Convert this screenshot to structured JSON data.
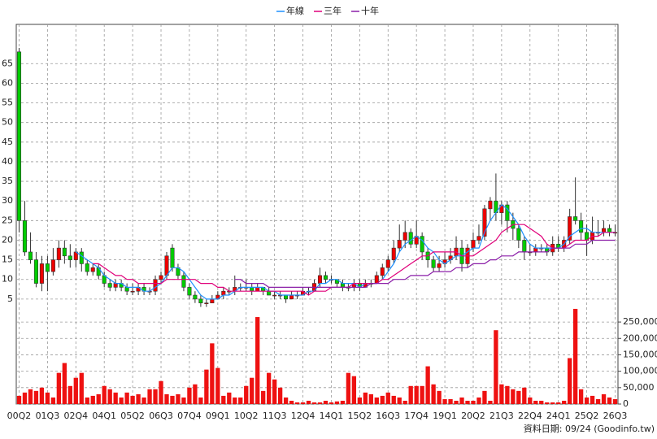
{
  "chart_data": {
    "type": "candlestick",
    "categories": [
      "00Q2",
      null,
      null,
      null,
      null,
      "01Q3",
      null,
      null,
      null,
      null,
      "02Q4",
      null,
      null,
      null,
      null,
      "04Q1",
      null,
      null,
      null,
      null,
      "05Q2",
      null,
      null,
      null,
      null,
      "06Q3",
      null,
      null,
      null,
      null,
      "07Q4",
      null,
      null,
      null,
      null,
      "09Q1",
      null,
      null,
      null,
      null,
      "10Q2",
      null,
      null,
      null,
      null,
      "11Q3",
      null,
      null,
      null,
      null,
      "12Q4",
      null,
      null,
      null,
      null,
      "14Q1",
      null,
      null,
      null,
      null,
      "15Q2",
      null,
      null,
      null,
      null,
      "16Q3",
      null,
      null,
      null,
      null,
      "17Q4",
      null,
      null,
      null,
      null,
      "19Q1",
      null,
      null,
      null,
      null,
      "20Q2",
      null,
      null,
      null,
      null,
      "21Q3",
      null,
      null,
      null,
      null,
      "22Q4",
      null,
      null,
      null,
      null,
      "24Q1",
      null,
      null,
      null,
      null,
      "25Q2",
      null,
      null,
      null,
      null,
      "26Q3"
    ],
    "candles": [
      [
        68,
        69,
        22,
        25
      ],
      [
        25,
        30,
        16,
        17
      ],
      [
        17,
        22,
        14,
        15
      ],
      [
        15,
        17,
        8,
        9
      ],
      [
        9,
        16,
        7,
        14
      ],
      [
        14,
        16,
        7,
        12
      ],
      [
        12,
        18,
        11,
        15
      ],
      [
        15,
        20,
        13,
        18
      ],
      [
        18,
        20,
        14,
        16
      ],
      [
        16,
        19,
        13,
        15
      ],
      [
        15,
        18,
        13,
        17
      ],
      [
        17,
        18,
        12,
        14
      ],
      [
        14,
        15,
        11,
        12
      ],
      [
        12,
        14,
        11,
        13
      ],
      [
        13,
        14,
        10,
        11
      ],
      [
        11,
        12,
        8,
        9
      ],
      [
        9,
        10,
        7,
        8
      ],
      [
        8,
        10,
        7,
        9
      ],
      [
        9,
        10,
        7,
        8
      ],
      [
        8,
        9,
        6,
        7
      ],
      [
        7,
        9,
        6,
        7
      ],
      [
        7,
        9,
        6,
        8
      ],
      [
        8,
        9,
        6,
        7
      ],
      [
        7,
        8,
        6,
        7
      ],
      [
        7,
        11,
        6,
        10
      ],
      [
        10,
        12,
        9,
        11
      ],
      [
        11,
        17,
        10,
        16
      ],
      [
        18,
        19,
        12,
        13
      ],
      [
        13,
        14,
        10,
        11
      ],
      [
        11,
        12,
        7,
        8
      ],
      [
        8,
        9,
        5,
        6
      ],
      [
        6,
        7,
        4,
        5
      ],
      [
        5,
        6,
        3,
        4
      ],
      [
        4,
        5,
        3,
        4
      ],
      [
        4,
        6,
        4,
        5
      ],
      [
        5,
        7,
        5,
        6
      ],
      [
        6,
        8,
        5,
        7
      ],
      [
        7,
        8,
        6,
        7
      ],
      [
        7,
        11,
        6,
        8
      ],
      [
        8,
        9,
        7,
        8
      ],
      [
        8,
        10,
        7,
        8
      ],
      [
        8,
        9,
        6,
        7
      ],
      [
        7,
        9,
        7,
        8
      ],
      [
        8,
        8,
        6,
        7
      ],
      [
        7,
        8,
        6,
        6
      ],
      [
        6,
        7,
        5,
        6
      ],
      [
        6,
        7,
        5,
        6
      ],
      [
        6,
        6,
        4,
        5
      ],
      [
        5,
        7,
        5,
        6
      ],
      [
        6,
        7,
        5,
        6
      ],
      [
        6,
        8,
        6,
        7
      ],
      [
        7,
        8,
        6,
        7
      ],
      [
        7,
        10,
        7,
        9
      ],
      [
        9,
        13,
        8,
        11
      ],
      [
        11,
        12,
        9,
        10
      ],
      [
        10,
        11,
        9,
        10
      ],
      [
        10,
        10,
        8,
        9
      ],
      [
        9,
        10,
        7,
        8
      ],
      [
        8,
        9,
        7,
        8
      ],
      [
        8,
        10,
        7,
        9
      ],
      [
        9,
        10,
        7,
        8
      ],
      [
        8,
        10,
        8,
        9
      ],
      [
        9,
        10,
        8,
        9
      ],
      [
        9,
        12,
        9,
        11
      ],
      [
        11,
        14,
        10,
        13
      ],
      [
        13,
        16,
        12,
        15
      ],
      [
        15,
        20,
        14,
        18
      ],
      [
        18,
        24,
        17,
        20
      ],
      [
        20,
        25,
        18,
        22
      ],
      [
        22,
        23,
        18,
        19
      ],
      [
        19,
        25,
        18,
        21
      ],
      [
        21,
        22,
        15,
        17
      ],
      [
        17,
        18,
        13,
        15
      ],
      [
        15,
        16,
        12,
        13
      ],
      [
        13,
        16,
        12,
        14
      ],
      [
        14,
        17,
        13,
        15
      ],
      [
        15,
        18,
        14,
        16
      ],
      [
        16,
        21,
        15,
        18
      ],
      [
        18,
        20,
        12,
        14
      ],
      [
        14,
        19,
        13,
        18
      ],
      [
        18,
        22,
        17,
        20
      ],
      [
        20,
        24,
        19,
        21
      ],
      [
        21,
        29,
        20,
        28
      ],
      [
        28,
        31,
        25,
        30
      ],
      [
        30,
        37,
        25,
        27
      ],
      [
        27,
        30,
        24,
        29
      ],
      [
        29,
        30,
        22,
        25
      ],
      [
        25,
        27,
        20,
        23
      ],
      [
        23,
        24,
        18,
        20
      ],
      [
        20,
        21,
        15,
        17
      ],
      [
        17,
        19,
        16,
        17
      ],
      [
        17,
        19,
        16,
        18
      ],
      [
        18,
        19,
        17,
        18
      ],
      [
        18,
        19,
        16,
        17
      ],
      [
        17,
        21,
        16,
        19
      ],
      [
        19,
        21,
        17,
        18
      ],
      [
        18,
        21,
        17,
        20
      ],
      [
        20,
        28,
        19,
        26
      ],
      [
        26,
        36,
        24,
        25
      ],
      [
        25,
        27,
        20,
        22
      ],
      [
        22,
        24,
        16,
        20
      ],
      [
        20,
        26,
        19,
        22
      ],
      [
        22,
        25,
        21,
        22
      ],
      [
        22,
        25,
        21,
        23
      ],
      [
        23,
        24,
        21,
        22
      ],
      [
        22,
        24,
        21,
        22
      ]
    ],
    "up_color": "#ee0000",
    "down_color": "#00cc00",
    "volume": [
      25000,
      35000,
      45000,
      40000,
      50000,
      35000,
      20000,
      95000,
      125000,
      55000,
      80000,
      95000,
      20000,
      25000,
      30000,
      55000,
      45000,
      35000,
      20000,
      35000,
      25000,
      30000,
      20000,
      45000,
      45000,
      70000,
      30000,
      25000,
      30000,
      20000,
      50000,
      60000,
      20000,
      105000,
      185000,
      110000,
      25000,
      35000,
      20000,
      20000,
      55000,
      80000,
      265000,
      40000,
      95000,
      75000,
      50000,
      20000,
      10000,
      5000,
      5000,
      10000,
      5000,
      5000,
      10000,
      5000,
      8000,
      10000,
      95000,
      85000,
      20000,
      35000,
      30000,
      20000,
      25000,
      35000,
      25000,
      20000,
      10000,
      55000,
      55000,
      55000,
      115000,
      60000,
      40000,
      15000,
      15000,
      10000,
      20000,
      10000,
      10000,
      20000,
      40000,
      10000,
      225000,
      60000,
      55000,
      45000,
      40000,
      50000,
      20000,
      10000,
      10000,
      5000,
      5000,
      5000,
      10000,
      140000,
      290000,
      45000,
      20000,
      25000,
      15000,
      30000,
      20000,
      15000
    ],
    "volume_color": "#ee1111",
    "series": [
      {
        "name": "年線",
        "color": "#1e90ff",
        "values": [
          null,
          null,
          null,
          null,
          null,
          null,
          null,
          null,
          null,
          null,
          17,
          16,
          15,
          14,
          13,
          11,
          10,
          9,
          9,
          8,
          8,
          8,
          7,
          7,
          8,
          9,
          11,
          13,
          13,
          12,
          10,
          8,
          6,
          5,
          5,
          5,
          6,
          6,
          7,
          8,
          8,
          8,
          8,
          8,
          7,
          7,
          6,
          6,
          6,
          6,
          6,
          7,
          7,
          9,
          9,
          10,
          10,
          9,
          9,
          9,
          8,
          9,
          9,
          9,
          10,
          12,
          14,
          17,
          19,
          20,
          21,
          20,
          18,
          17,
          15,
          14,
          15,
          16,
          16,
          17,
          18,
          18,
          22,
          25,
          27,
          29,
          28,
          26,
          24,
          21,
          19,
          18,
          18,
          18,
          18,
          18,
          19,
          21,
          22,
          23,
          23,
          22,
          22,
          22,
          22,
          22
        ]
      },
      {
        "name": "三年",
        "color": "#e0007a",
        "values": [
          null,
          null,
          null,
          null,
          null,
          null,
          null,
          null,
          null,
          null,
          null,
          null,
          null,
          14,
          14,
          13,
          12,
          11,
          11,
          10,
          10,
          9,
          9,
          9,
          9,
          9,
          10,
          10,
          10,
          10,
          10,
          10,
          9,
          9,
          9,
          8,
          8,
          7,
          7,
          7,
          7,
          7,
          7,
          7,
          7,
          7,
          7,
          7,
          7,
          7,
          7,
          6,
          7,
          7,
          7,
          8,
          8,
          8,
          8,
          9,
          9,
          9,
          9,
          9,
          10,
          10,
          11,
          12,
          13,
          14,
          15,
          16,
          16,
          17,
          17,
          17,
          17,
          17,
          16,
          16,
          16,
          17,
          18,
          19,
          20,
          22,
          23,
          24,
          24,
          24,
          23,
          22,
          21,
          19,
          18,
          18,
          18,
          19,
          20,
          20,
          20,
          21,
          21,
          22,
          22,
          22
        ]
      },
      {
        "name": "十年",
        "color": "#8b1fa8",
        "values": [
          null,
          null,
          null,
          null,
          null,
          null,
          null,
          null,
          null,
          null,
          null,
          null,
          null,
          null,
          null,
          null,
          null,
          null,
          null,
          null,
          null,
          null,
          null,
          null,
          null,
          null,
          null,
          null,
          null,
          null,
          null,
          null,
          null,
          null,
          null,
          null,
          null,
          null,
          10,
          10,
          9,
          9,
          9,
          9,
          8,
          8,
          8,
          8,
          8,
          8,
          8,
          8,
          8,
          8,
          8,
          8,
          8,
          8,
          8,
          8,
          8,
          8,
          9,
          9,
          9,
          9,
          10,
          10,
          10,
          11,
          11,
          11,
          11,
          12,
          12,
          12,
          12,
          13,
          13,
          13,
          14,
          14,
          14,
          15,
          15,
          16,
          16,
          16,
          17,
          17,
          17,
          17,
          17,
          17,
          18,
          18,
          18,
          18,
          19,
          19,
          19,
          20,
          20,
          20,
          20,
          20
        ]
      }
    ],
    "ylim": [
      0,
      75
    ],
    "yticks": [
      5,
      10,
      15,
      20,
      25,
      30,
      35,
      40,
      45,
      50,
      55,
      60,
      65
    ],
    "y2lim": [
      0,
      275000
    ],
    "y2ticks": [
      0,
      {
        "value": 50000,
        "label": "50,000"
      },
      {
        "value": 100000,
        "label": "100,000"
      },
      {
        "value": 150000,
        "label": "150,000"
      },
      {
        "value": 200000,
        "label": "200,000"
      },
      {
        "value": 250000,
        "label": "250,000"
      }
    ],
    "grid": true,
    "footnote": "資料日期: 09/24 (Goodinfo.tw)"
  }
}
